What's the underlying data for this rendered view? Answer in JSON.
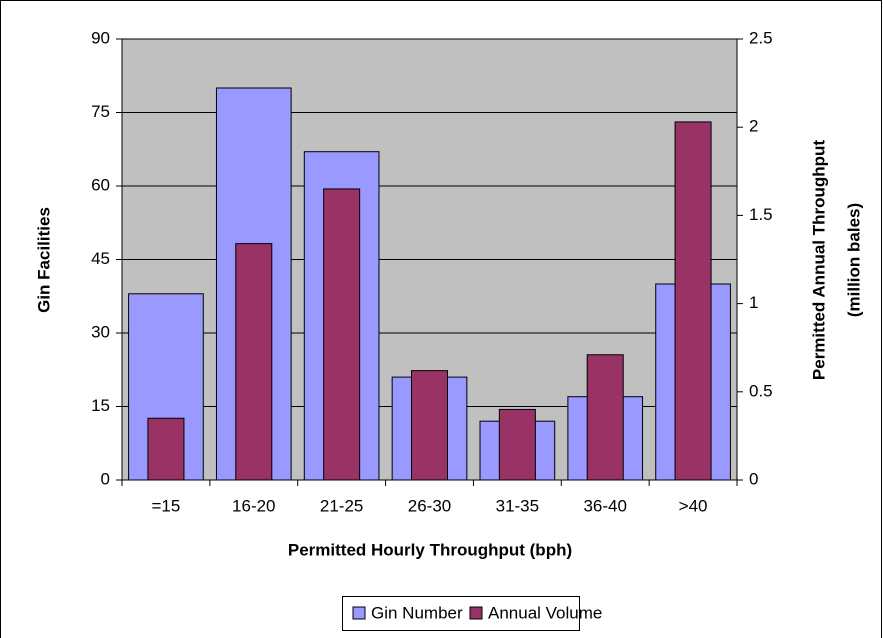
{
  "chart_data": {
    "type": "bar",
    "categories": [
      "=15",
      "16-20",
      "21-25",
      "26-30",
      "31-35",
      "36-40",
      ">40"
    ],
    "series": [
      {
        "name": "Gin Number",
        "color": "#9999ff",
        "values": [
          38,
          80,
          67,
          21,
          12,
          17,
          40
        ]
      },
      {
        "name": "Annual Volume",
        "color": "#993366",
        "axis": "y2",
        "values": [
          0.35,
          1.34,
          1.65,
          0.62,
          0.4,
          0.71,
          2.03
        ]
      }
    ],
    "xlabel": "Permitted Hourly Throughput (bph)",
    "ylabel": "Gin Facilities",
    "y2label": [
      "Permitted Annual Throughput",
      "(million bales)"
    ],
    "ylim": [
      0,
      90
    ],
    "yticks": [
      0,
      15,
      30,
      45,
      60,
      75,
      90
    ],
    "y2lim": [
      0,
      2.5
    ],
    "y2ticks": [
      0,
      0.5,
      1,
      1.5,
      2,
      2.5
    ],
    "grid": true,
    "legend": "bottom",
    "plot_background": "#c0c0c0"
  }
}
